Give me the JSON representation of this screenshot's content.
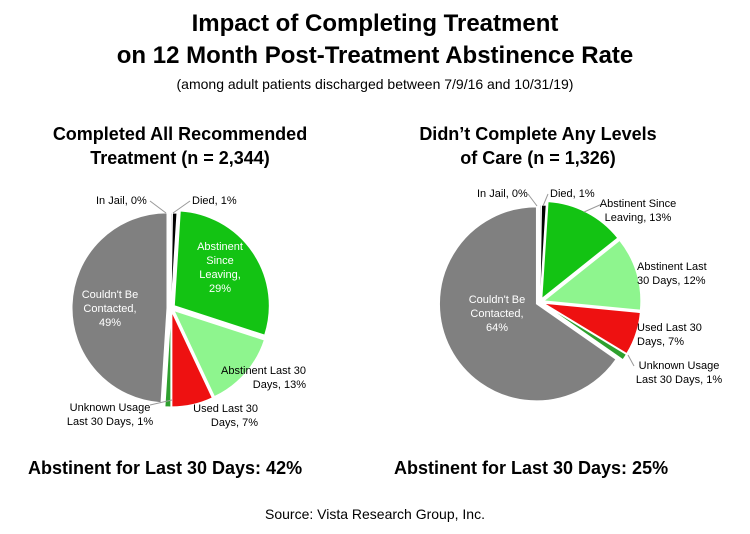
{
  "title_line1": "Impact of Completing Treatment",
  "title_line2": "on 12 Month Post-Treatment Abstinence Rate",
  "subtitle": "(among adult patients discharged between 7/9/16 and 10/31/19)",
  "source": "Source:  Vista Research Group, Inc.",
  "colors": {
    "abstinent_since": "#13c313",
    "abstinent_30": "#8ef58e",
    "used_30": "#ee1111",
    "unknown": "#2ea02e",
    "not_contacted": "#808080",
    "jail": "#bcbcbc",
    "died": "#000000"
  },
  "chart_data": [
    {
      "type": "pie",
      "title_line1": "Completed All Recommended",
      "title_line2": "Treatment (n = 2,344)",
      "summary": "Abstinent for Last 30 Days:  42%",
      "slices": [
        {
          "key": "died",
          "label_lines": [
            "Died, 1%"
          ],
          "value": 1
        },
        {
          "key": "abstinent_since",
          "label_lines": [
            "Abstinent",
            "Since",
            "Leaving,",
            "29%"
          ],
          "value": 29
        },
        {
          "key": "abstinent_30",
          "label_lines": [
            "Abstinent Last 30",
            "Days, 13%"
          ],
          "value": 13
        },
        {
          "key": "used_30",
          "label_lines": [
            "Used Last 30",
            "Days, 7%"
          ],
          "value": 7
        },
        {
          "key": "unknown",
          "label_lines": [
            "Unknown Usage",
            "Last 30 Days, 1%"
          ],
          "value": 1
        },
        {
          "key": "not_contacted",
          "label_lines": [
            "Couldn't Be",
            "Contacted,",
            "49%"
          ],
          "value": 49
        },
        {
          "key": "jail",
          "label_lines": [
            "In Jail, 0%"
          ],
          "value": 0
        }
      ]
    },
    {
      "type": "pie",
      "title_line1": "Didn’t Complete Any Levels",
      "title_line2": "of Care (n = 1,326)",
      "summary": "Abstinent for Last 30 Days:  25%",
      "slices": [
        {
          "key": "died",
          "label_lines": [
            "Died, 1%"
          ],
          "value": 1
        },
        {
          "key": "abstinent_since",
          "label_lines": [
            "Abstinent Since",
            "Leaving, 13%"
          ],
          "value": 13
        },
        {
          "key": "abstinent_30",
          "label_lines": [
            "Abstinent Last",
            "30 Days, 12%"
          ],
          "value": 12
        },
        {
          "key": "used_30",
          "label_lines": [
            "Used Last 30",
            "Days, 7%"
          ],
          "value": 7
        },
        {
          "key": "unknown",
          "label_lines": [
            "Unknown Usage",
            "Last 30 Days, 1%"
          ],
          "value": 1
        },
        {
          "key": "not_contacted",
          "label_lines": [
            "Couldn't Be",
            "Contacted,",
            "64%"
          ],
          "value": 64
        },
        {
          "key": "jail",
          "label_lines": [
            "In Jail, 0%"
          ],
          "value": 0
        }
      ]
    }
  ]
}
